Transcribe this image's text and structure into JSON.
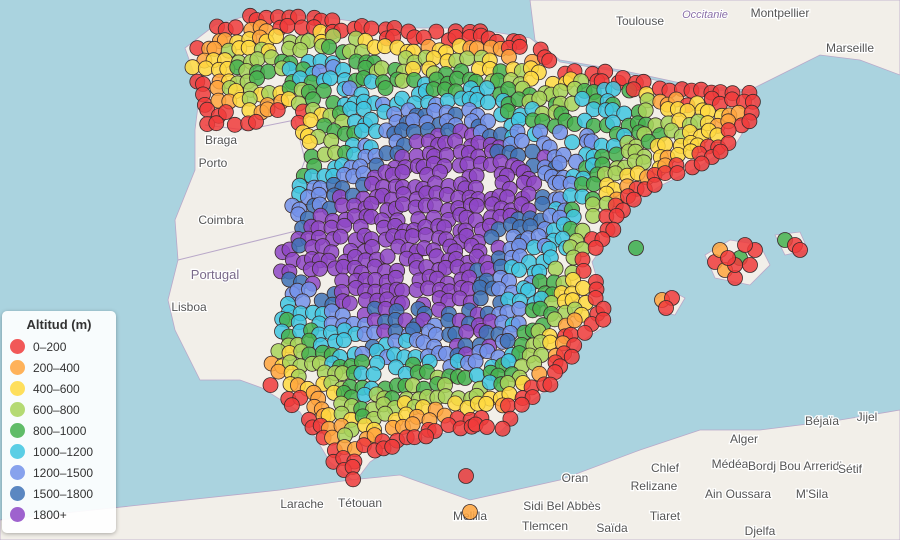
{
  "legend": {
    "title": "Altitud (m)",
    "items": [
      {
        "label": "0–200",
        "color": "#f03b3b"
      },
      {
        "label": "200–400",
        "color": "#ffa53d"
      },
      {
        "label": "400–600",
        "color": "#ffd93f"
      },
      {
        "label": "600–800",
        "color": "#a8d45a"
      },
      {
        "label": "800–1000",
        "color": "#45b04e"
      },
      {
        "label": "1000–1200",
        "color": "#40c6e0"
      },
      {
        "label": "1200–1500",
        "color": "#7392ea"
      },
      {
        "label": "1500–1800",
        "color": "#4072b6"
      },
      {
        "label": "1800+",
        "color": "#8e47c6"
      }
    ]
  },
  "places": {
    "toulouse": "Toulouse",
    "occitanie": "Occitanie",
    "montpellier": "Montpellier",
    "marseille": "Marseille",
    "braga": "Braga",
    "porto": "Porto",
    "coimbra": "Coimbra",
    "portugal": "Portugal",
    "lisboa": "Lisboa",
    "alger": "Alger",
    "bejaia": "Béjaïa",
    "jijel": "Jijel",
    "medea": "Médéa",
    "chlef": "Chlef",
    "bordj": "Bordj Bou Arreridj",
    "setif": "Sétif",
    "relizane": "Relizane",
    "ainoussara": "Ain Oussara",
    "msila": "M'Sila",
    "tiaret": "Tiaret",
    "oran": "Oran",
    "sidibelabbes": "Sidi Bel Abbès",
    "tlemcen": "Tlemcen",
    "saida": "Saïda",
    "djelfa": "Djelfa",
    "larache": "Larache",
    "tetouan": "Tétouan",
    "melilla": "Melilla"
  }
}
